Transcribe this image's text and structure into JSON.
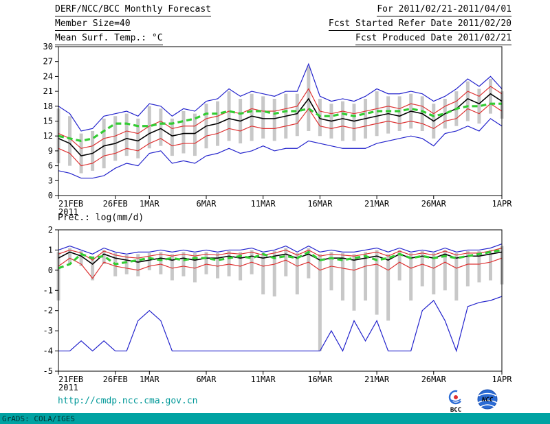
{
  "header": {
    "left": {
      "title": "DERF/NCC/BCC Monthly Forecast",
      "member_size": "Member Size=40"
    },
    "right": {
      "period": "For 2011/02/21-2011/04/01",
      "refer_date": "Fcst Started Refer Date 2011/02/20",
      "produced_date": "Fcst Produced Date 2011/02/21"
    }
  },
  "footer": {
    "link": "http://cmdp.ncc.cma.gov.cn",
    "credit": "GrADS: COLA/IGES",
    "logos": [
      {
        "label": "BCC"
      },
      {
        "label": "NCC"
      }
    ]
  },
  "colors": {
    "blue_line": "#2222cc",
    "red_line": "#dd3333",
    "black_line": "#000000",
    "green_dashed": "#33cc33",
    "gray_bars": "#c8c8c8",
    "teal_accent": "#00a2a2",
    "link_teal": "#009898"
  },
  "chart_data": [
    {
      "type": "line",
      "title": "Mean Surf. Temp.: °C",
      "xlabel": "",
      "ylabel": "",
      "ylim": [
        0,
        30
      ],
      "grid": false,
      "legend_position": "none",
      "n_points": 40,
      "yticks": [
        0,
        3,
        6,
        9,
        12,
        15,
        18,
        21,
        24,
        27,
        30
      ],
      "xticks": [
        {
          "index": 0,
          "label": "21FEB",
          "sublabel": "2011"
        },
        {
          "index": 5,
          "label": "26FEB"
        },
        {
          "index": 8,
          "label": "1MAR"
        },
        {
          "index": 13,
          "label": "6MAR"
        },
        {
          "index": 18,
          "label": "11MAR"
        },
        {
          "index": 23,
          "label": "16MAR"
        },
        {
          "index": 28,
          "label": "21MAR"
        },
        {
          "index": 33,
          "label": "26MAR"
        },
        {
          "index": 39,
          "label": "1APR"
        }
      ],
      "series": [
        {
          "name": "member-spread-bars",
          "style": "bars",
          "color": "#c8c8c8",
          "low": [
            6.5,
            6,
            4.5,
            5,
            5.5,
            7,
            8,
            7.5,
            9.5,
            10,
            8,
            8.5,
            8,
            9.5,
            10,
            11,
            10.5,
            11,
            11.5,
            11,
            11.5,
            12,
            13,
            12,
            11.5,
            11,
            11,
            11.5,
            12,
            12.5,
            13,
            13.5,
            13,
            11.5,
            13.5,
            14,
            15,
            14.5,
            16.5,
            15.5
          ],
          "high": [
            17.5,
            16,
            12.5,
            13,
            15.5,
            16,
            16.5,
            15.5,
            18,
            17.5,
            15.5,
            17,
            16.5,
            18.5,
            19,
            21,
            19.5,
            20.5,
            20,
            19.5,
            20.5,
            20.5,
            26,
            19.5,
            18.5,
            19,
            18.5,
            19.5,
            21,
            20,
            20,
            20.5,
            20,
            18.5,
            19.5,
            21,
            23,
            21.5,
            23.5,
            21
          ]
        },
        {
          "name": "blue-upper-envelope",
          "style": "line",
          "color": "#2222cc",
          "values": [
            18,
            16.5,
            13,
            13.5,
            16,
            16.5,
            17,
            16,
            18.5,
            18,
            16,
            17.5,
            17,
            19,
            19.5,
            21.5,
            20,
            21,
            20.5,
            20,
            21,
            21,
            26.5,
            20,
            19,
            19.5,
            19,
            20,
            21.5,
            20.5,
            20.5,
            21,
            20.5,
            19,
            20,
            21.5,
            23.5,
            22,
            24,
            21.5
          ]
        },
        {
          "name": "blue-lower-envelope",
          "style": "line",
          "color": "#2222cc",
          "values": [
            5,
            4.5,
            3.5,
            3.5,
            4,
            5.5,
            6.5,
            6,
            8.5,
            9,
            6.5,
            7,
            6.5,
            8,
            8.5,
            9.5,
            8.5,
            9,
            10,
            9,
            9.5,
            9.5,
            11,
            10.5,
            10,
            9.5,
            9.5,
            9.5,
            10.5,
            11,
            11.5,
            12,
            11.5,
            10,
            12.5,
            13,
            14,
            13,
            15.5,
            14
          ]
        },
        {
          "name": "red-upper-line",
          "style": "line",
          "color": "#dd3333",
          "values": [
            12.5,
            11.5,
            9.5,
            10,
            11.5,
            12,
            13,
            12.5,
            14,
            15,
            13.5,
            14,
            14,
            15.5,
            16,
            17,
            16.5,
            17.5,
            17,
            17,
            17.5,
            18,
            21.5,
            17,
            16.5,
            17,
            16.5,
            17,
            17.5,
            18,
            17.5,
            18.5,
            18,
            16.5,
            18,
            19,
            21,
            20,
            22,
            20.5
          ]
        },
        {
          "name": "red-lower-line",
          "style": "line",
          "color": "#dd3333",
          "values": [
            9.5,
            8.5,
            6,
            6.5,
            8,
            8.5,
            9.5,
            9,
            10.5,
            11.5,
            10,
            10.5,
            10.5,
            12,
            12.5,
            13.5,
            13,
            14,
            13.5,
            13.5,
            14,
            14.5,
            17.5,
            14,
            13.5,
            14,
            13.5,
            14,
            14.5,
            15,
            14.5,
            15,
            14.5,
            13.5,
            15,
            15.5,
            17.5,
            16.5,
            18.5,
            17
          ]
        },
        {
          "name": "black-mean-line",
          "style": "line",
          "color": "#000000",
          "values": [
            11.5,
            10.5,
            8,
            8.5,
            10,
            10.5,
            11.5,
            11,
            12.5,
            13.5,
            12,
            12.5,
            12.5,
            14,
            14.5,
            15.5,
            15,
            16,
            15.5,
            15.5,
            16,
            16.5,
            19.5,
            15.5,
            15,
            15.5,
            15,
            15.5,
            16,
            16.5,
            16,
            17,
            16.5,
            15,
            16.5,
            17.5,
            19.5,
            18.5,
            20.5,
            19
          ]
        },
        {
          "name": "green-dashed-line",
          "style": "dashed",
          "color": "#33cc33",
          "values": [
            12,
            11.5,
            11,
            11.5,
            13,
            14.5,
            14.5,
            14,
            14,
            14.5,
            14.5,
            15,
            15.5,
            16.5,
            16.5,
            17,
            16.5,
            17,
            17,
            16.5,
            17,
            17,
            17.5,
            16,
            16,
            16.5,
            16,
            16.5,
            17,
            17,
            17,
            17.5,
            17,
            16,
            16.5,
            17.5,
            18,
            18,
            18.5,
            18.5
          ]
        }
      ]
    },
    {
      "type": "line",
      "title": "Prec.: log(mm/d)",
      "xlabel": "",
      "ylabel": "",
      "ylim": [
        -5,
        2
      ],
      "grid": false,
      "legend_position": "none",
      "n_points": 40,
      "yticks": [
        -5,
        -4,
        -3,
        -2,
        -1,
        0,
        1,
        2
      ],
      "xticks": [
        {
          "index": 0,
          "label": "21FEB",
          "sublabel": "2011"
        },
        {
          "index": 5,
          "label": "26FEB"
        },
        {
          "index": 8,
          "label": "1MAR"
        },
        {
          "index": 13,
          "label": "6MAR"
        },
        {
          "index": 18,
          "label": "11MAR"
        },
        {
          "index": 23,
          "label": "16MAR"
        },
        {
          "index": 28,
          "label": "21MAR"
        },
        {
          "index": 33,
          "label": "26MAR"
        },
        {
          "index": 39,
          "label": "1APR"
        }
      ],
      "series": [
        {
          "name": "member-spread-bars",
          "style": "bars",
          "color": "#c8c8c8",
          "low": [
            -1.5,
            0.3,
            0.2,
            -0.5,
            0.3,
            -0.3,
            -0.2,
            -0.3,
            0,
            -0.2,
            -0.5,
            -0.3,
            -0.6,
            -0.2,
            -0.4,
            -0.3,
            -0.5,
            -0.2,
            -1.2,
            -1.3,
            -0.3,
            -1.2,
            -0.4,
            -4,
            -1,
            -1.5,
            -2,
            -1.5,
            -2.2,
            -2.5,
            -0.5,
            -1.5,
            -0.8,
            -1.2,
            -1,
            -1.5,
            -0.8,
            -0.6,
            -0.5,
            -0.7
          ],
          "high": [
            0.9,
            1.1,
            0.95,
            0.7,
            1,
            0.85,
            0.75,
            0.8,
            0.85,
            0.9,
            0.8,
            0.9,
            0.85,
            0.9,
            0.85,
            0.95,
            0.9,
            1,
            0.85,
            0.95,
            1.1,
            0.85,
            1.1,
            0.8,
            0.9,
            0.85,
            0.8,
            0.9,
            1,
            0.8,
            1,
            0.85,
            0.95,
            0.85,
            1,
            0.85,
            0.95,
            0.95,
            1,
            1.2
          ]
        },
        {
          "name": "blue-upper-envelope",
          "style": "line",
          "color": "#2222cc",
          "values": [
            1,
            1.2,
            1,
            0.8,
            1.1,
            0.9,
            0.8,
            0.9,
            0.9,
            1,
            0.9,
            1,
            0.9,
            1,
            0.9,
            1,
            1,
            1.1,
            0.9,
            1,
            1.2,
            0.9,
            1.2,
            0.9,
            1,
            0.9,
            0.9,
            1,
            1.1,
            0.9,
            1.1,
            0.9,
            1,
            0.9,
            1.1,
            0.9,
            1,
            1,
            1.1,
            1.3
          ]
        },
        {
          "name": "blue-lower-envelope",
          "style": "line",
          "color": "#2222cc",
          "values": [
            -4,
            -4,
            -3.5,
            -4,
            -3.5,
            -4,
            -4,
            -2.5,
            -2,
            -2.5,
            -4,
            -4,
            -4,
            -4,
            -4,
            -4,
            -4,
            -4,
            -4,
            -4,
            -4,
            -4,
            -4,
            -4,
            -3,
            -4,
            -2.5,
            -3.5,
            -2.5,
            -4,
            -4,
            -4,
            -2,
            -1.5,
            -2.5,
            -4,
            -1.8,
            -1.6,
            -1.5,
            -1.3
          ]
        },
        {
          "name": "red-upper-line",
          "style": "line",
          "color": "#dd3333",
          "values": [
            0.8,
            1,
            0.85,
            0.5,
            0.95,
            0.75,
            0.65,
            0.6,
            0.7,
            0.8,
            0.7,
            0.8,
            0.7,
            0.8,
            0.75,
            0.85,
            0.8,
            0.9,
            0.75,
            0.85,
            1,
            0.75,
            1,
            0.7,
            0.8,
            0.75,
            0.7,
            0.8,
            0.9,
            0.7,
            0.95,
            0.75,
            0.85,
            0.75,
            0.95,
            0.75,
            0.85,
            0.85,
            0.95,
            1.1
          ]
        },
        {
          "name": "red-lower-line",
          "style": "line",
          "color": "#dd3333",
          "values": [
            0.2,
            0.6,
            0.3,
            -0.4,
            0.4,
            0.2,
            0.1,
            0,
            0.2,
            0.3,
            0.1,
            0.2,
            0.1,
            0.3,
            0.2,
            0.3,
            0.2,
            0.4,
            0.2,
            0.3,
            0.5,
            0.2,
            0.4,
            0,
            0.2,
            0.1,
            0,
            0.2,
            0.3,
            0,
            0.4,
            0.1,
            0.3,
            0.1,
            0.4,
            0.1,
            0.3,
            0.3,
            0.4,
            0.6
          ]
        },
        {
          "name": "black-mean-line",
          "style": "line",
          "color": "#000000",
          "values": [
            0.6,
            0.9,
            0.7,
            0.3,
            0.8,
            0.6,
            0.5,
            0.4,
            0.5,
            0.6,
            0.5,
            0.6,
            0.5,
            0.6,
            0.6,
            0.7,
            0.6,
            0.7,
            0.6,
            0.7,
            0.8,
            0.6,
            0.8,
            0.5,
            0.6,
            0.6,
            0.5,
            0.6,
            0.7,
            0.5,
            0.8,
            0.6,
            0.7,
            0.6,
            0.8,
            0.6,
            0.7,
            0.7,
            0.8,
            0.9
          ]
        },
        {
          "name": "green-dashed-line",
          "style": "dashed",
          "color": "#33cc33",
          "values": [
            0.1,
            0.3,
            0.8,
            0.6,
            0.7,
            0.3,
            0.4,
            0.5,
            0.6,
            0.5,
            0.6,
            0.5,
            0.6,
            0.6,
            0.5,
            0.6,
            0.7,
            0.6,
            0.8,
            0.6,
            0.7,
            0.6,
            0.9,
            0.5,
            0.6,
            0.5,
            0.6,
            0.7,
            0.5,
            0.6,
            0.8,
            0.6,
            0.7,
            0.6,
            0.7,
            0.6,
            0.7,
            0.8,
            0.9,
            1
          ]
        }
      ]
    }
  ]
}
